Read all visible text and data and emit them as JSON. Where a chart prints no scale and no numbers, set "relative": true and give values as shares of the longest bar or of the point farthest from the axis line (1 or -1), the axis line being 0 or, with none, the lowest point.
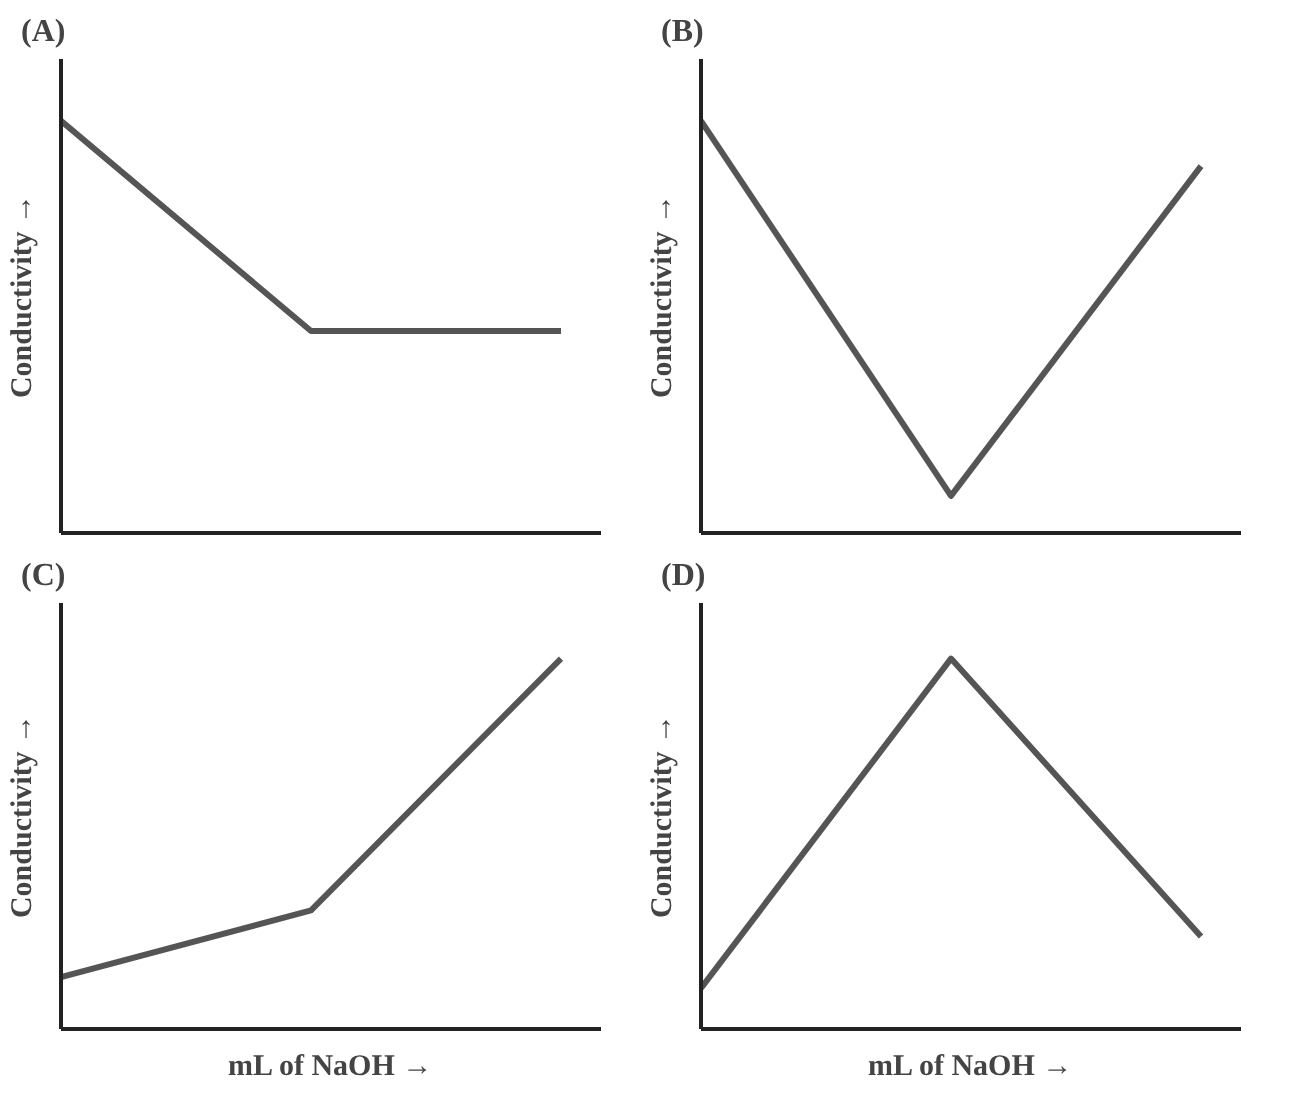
{
  "chart_data": [
    {
      "type": "line",
      "title": "(A)",
      "ylabel": "Conductivity →",
      "relative": true,
      "categories": [
        null,
        null,
        null
      ],
      "tick_labels": false,
      "series": [
        {
          "color": "#555555",
          "values": [
            1,
            0.49,
            0.49
          ]
        }
      ]
    },
    {
      "type": "line",
      "title": "(B)",
      "ylabel": "Conductivity →",
      "relative": true,
      "categories": [
        null,
        null,
        null
      ],
      "tick_labels": false,
      "series": [
        {
          "color": "#555555",
          "values": [
            1,
            0.09,
            0.89
          ]
        }
      ]
    },
    {
      "type": "line",
      "title": "(C)",
      "ylabel": "Conductivity →",
      "xlabel": "mL of NaOH →",
      "relative": true,
      "categories": [
        null,
        null,
        null
      ],
      "tick_labels": false,
      "series": [
        {
          "color": "#555555",
          "values": [
            0.14,
            0.32,
            1
          ]
        }
      ]
    },
    {
      "type": "line",
      "title": "(D)",
      "ylabel": "Conductivity →",
      "xlabel": "mL of NaOH →",
      "relative": true,
      "categories": [
        null,
        null,
        null
      ],
      "tick_labels": false,
      "series": [
        {
          "color": "#555555",
          "values": [
            0.11,
            1,
            0.25
          ]
        }
      ]
    }
  ]
}
